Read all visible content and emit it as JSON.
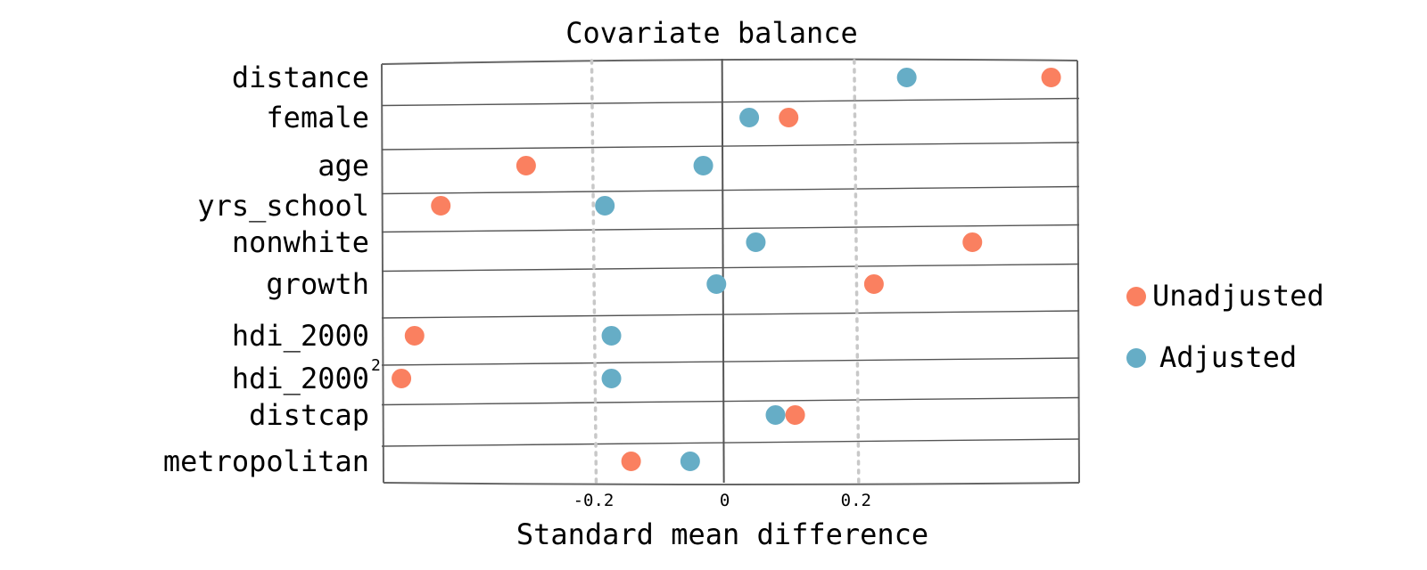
{
  "chart_data": {
    "type": "scatter",
    "title": "Covariate balance",
    "xlabel": "Standard mean difference",
    "ylabel": "",
    "xlim": [
      -0.52,
      0.54
    ],
    "xticks": [
      -0.2,
      0,
      0.2
    ],
    "xtick_labels": [
      "-0.2",
      "0",
      "0.2"
    ],
    "reference_lines": [
      -0.2,
      0.2
    ],
    "categories": [
      "distance",
      "female",
      "age",
      "yrs_school",
      "nonwhite",
      "growth",
      "hdi_2000",
      "hdi_2000",
      "distcap",
      "metropolitan"
    ],
    "category_superscripts": [
      "",
      "",
      "",
      "",
      "",
      "",
      "",
      "2",
      "",
      ""
    ],
    "series": [
      {
        "name": "Unadjusted",
        "color": "#FA8060",
        "values": [
          0.5,
          0.1,
          -0.3,
          -0.43,
          0.38,
          0.23,
          -0.47,
          -0.49,
          0.11,
          -0.14
        ]
      },
      {
        "name": "Adjusted",
        "color": "#66ADC6",
        "values": [
          0.28,
          0.04,
          -0.03,
          -0.18,
          0.05,
          -0.01,
          -0.17,
          -0.17,
          0.08,
          -0.05
        ]
      }
    ],
    "legend": {
      "position": "right",
      "entries": [
        "Unadjusted",
        "Adjusted"
      ]
    },
    "grid": false
  }
}
